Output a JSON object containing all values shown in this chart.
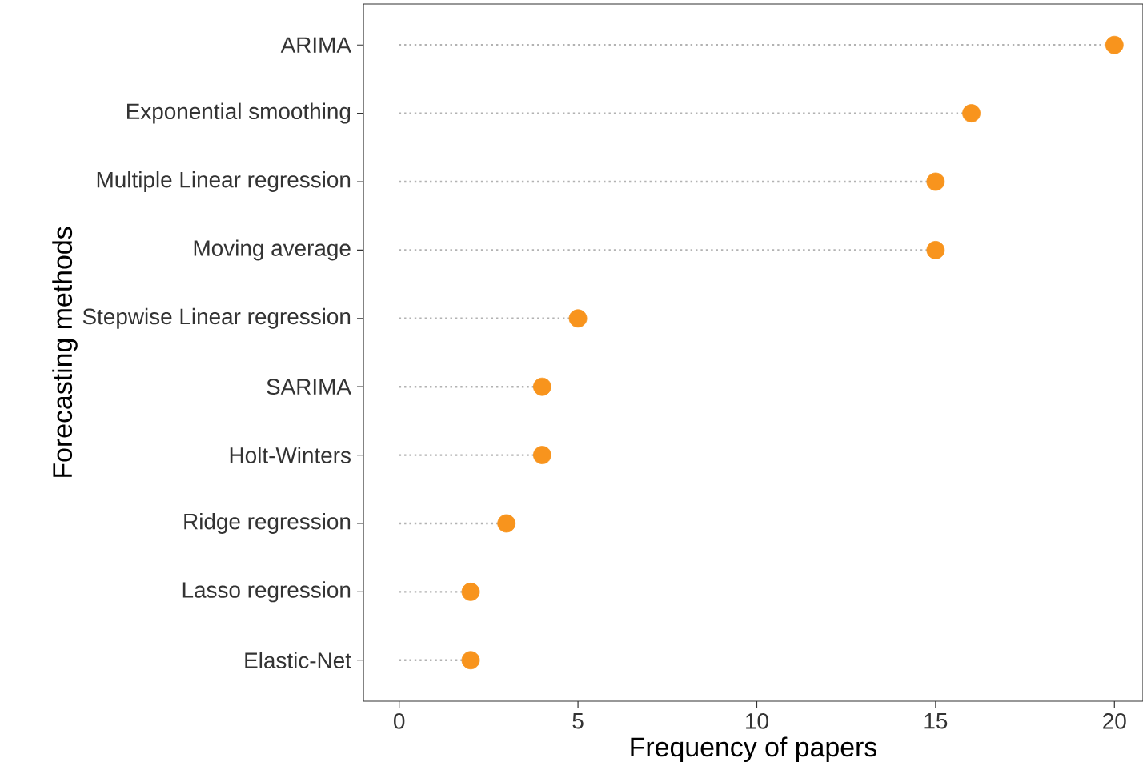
{
  "chart_data": {
    "type": "lollipop",
    "orientation": "horizontal",
    "xlabel": "Frequency of papers",
    "ylabel": "Forecasting methods",
    "categories": [
      "ARIMA",
      "Exponential smoothing",
      "Multiple Linear regression",
      "Moving average",
      "Stepwise Linear regression",
      "SARIMA",
      "Holt-Winters",
      "Ridge regression",
      "Lasso regression",
      "Elastic-Net"
    ],
    "values": [
      20,
      16,
      15,
      15,
      5,
      4,
      4,
      3,
      2,
      2
    ],
    "color": "#f8941d",
    "marker": "circle",
    "line_style": "dotted",
    "xlim": [
      -1,
      20.8
    ],
    "xticks": [
      0,
      5,
      10,
      15,
      20
    ]
  }
}
